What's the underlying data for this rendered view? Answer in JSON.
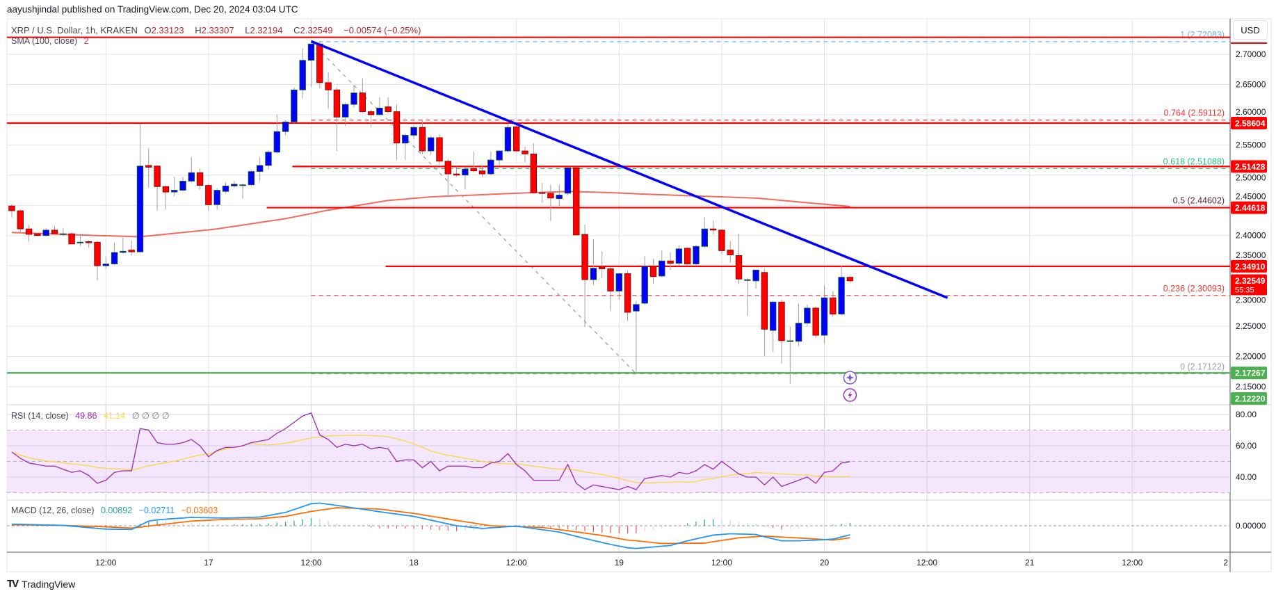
{
  "header": {
    "published": "aayushjindal published on TradingView.com, Dec 20, 2024 03:04 UTC"
  },
  "legend": {
    "symbol": "XRP / U.S. Dollar, 1h, KRAKEN",
    "o_label": "O",
    "o": "2.33123",
    "h_label": "H",
    "h": "2.33307",
    "l_label": "L",
    "l": "2.32194",
    "c_label": "C",
    "c": "2.32549",
    "change": "−0.00574 (−0.25%)",
    "sma_label": "SMA (100, close)",
    "sma_value": "2",
    "rsi_label": "RSI (14, close)",
    "rsi_value": "49.86",
    "rsi_ma_value": "41.14",
    "rsi_extra": "∅  ∅  ∅  ∅",
    "macd_label": "MACD (12, 26, close)",
    "macd_hist": "0.00892",
    "macd_value": "−0.02711",
    "macd_signal": "−0.03603"
  },
  "axis": {
    "currency": "USD",
    "price_ticks": [
      "2.15000",
      "2.20000",
      "2.25000",
      "2.30000",
      "2.35000",
      "2.40000",
      "2.45000",
      "2.50000",
      "2.55000",
      "2.60000",
      "2.65000",
      "2.70000"
    ],
    "rsi_ticks": [
      "40.00",
      "60.00",
      "80.00"
    ],
    "macd_ticks": [
      "0.00000"
    ],
    "time_labels": [
      {
        "bar": 11,
        "label": "12:00"
      },
      {
        "bar": 23,
        "label": "17"
      },
      {
        "bar": 35,
        "label": "12:00"
      },
      {
        "bar": 47,
        "label": "18"
      },
      {
        "bar": 59,
        "label": "12:00"
      },
      {
        "bar": 71,
        "label": "19"
      },
      {
        "bar": 83,
        "label": "12:00"
      },
      {
        "bar": 95,
        "label": "20"
      },
      {
        "bar": 107,
        "label": "12:00"
      },
      {
        "bar": 119,
        "label": "21"
      },
      {
        "bar": 131,
        "label": "12:00"
      },
      {
        "bar": 143,
        "label": "2"
      }
    ]
  },
  "price_tags": [
    {
      "value": 2.58604,
      "label": "2.58604",
      "color": "#ff0000"
    },
    {
      "value": 2.51428,
      "label": "2.51428",
      "color": "#ff0000"
    },
    {
      "value": 2.44618,
      "label": "2.44618",
      "color": "#ff0000"
    },
    {
      "value": 2.3491,
      "label": "2.34910",
      "color": "#ff0000"
    },
    {
      "value": 2.32549,
      "label": "2.32549",
      "countdown": "55:35",
      "color": "#ff0000"
    },
    {
      "value": 2.17267,
      "label": "2.17267",
      "color": "#4caf50"
    },
    {
      "value": 2.1222,
      "label": "2.12220",
      "color": "#4caf50"
    }
  ],
  "colors": {
    "up": "#0000ff",
    "up_border": "#1b5e20",
    "down": "#ff0000",
    "down_border": "#7f0000",
    "wick": "#9e9e9e",
    "sma": "#f44336",
    "trendline": "#0000ff",
    "rsi": "#9c27b0",
    "rsi_ma": "#fdd835",
    "rsi_band": "#f3e6fd",
    "macd": "#2196f3",
    "signal": "#ff6d00",
    "hist_up_strong": "#26a69a",
    "hist_up_weak": "#b2dfdb",
    "hist_dn_strong": "#ff5252",
    "hist_dn_weak": "#ffcdd2",
    "grid": "#e0e3eb"
  },
  "chart_data": {
    "type": "candlestick",
    "title": "XRP / U.S. Dollar, 1h, KRAKEN",
    "interval": "1h",
    "start": "Dec 16 01:00",
    "ylim": [
      2.12,
      2.76
    ],
    "ohlc": [
      [
        2.449,
        2.452,
        2.43,
        2.441
      ],
      [
        2.441,
        2.443,
        2.406,
        2.411
      ],
      [
        2.411,
        2.418,
        2.39,
        2.402
      ],
      [
        2.403,
        2.404,
        2.399,
        2.4
      ],
      [
        2.4,
        2.412,
        2.399,
        2.409
      ],
      [
        2.409,
        2.416,
        2.402,
        2.403
      ],
      [
        2.403,
        2.412,
        2.399,
        2.403
      ],
      [
        2.403,
        2.405,
        2.386,
        2.386
      ],
      [
        2.388,
        2.403,
        2.383,
        2.389
      ],
      [
        2.39,
        2.392,
        2.38,
        2.388
      ],
      [
        2.389,
        2.391,
        2.326,
        2.35
      ],
      [
        2.35,
        2.365,
        2.345,
        2.353
      ],
      [
        2.353,
        2.388,
        2.351,
        2.372
      ],
      [
        2.372,
        2.397,
        2.37,
        2.374
      ],
      [
        2.376,
        2.392,
        2.367,
        2.373
      ],
      [
        2.373,
        2.585,
        2.372,
        2.515
      ],
      [
        2.516,
        2.545,
        2.479,
        2.513
      ],
      [
        2.515,
        2.516,
        2.441,
        2.481
      ],
      [
        2.481,
        2.483,
        2.443,
        2.472
      ],
      [
        2.472,
        2.497,
        2.465,
        2.475
      ],
      [
        2.475,
        2.497,
        2.473,
        2.49
      ],
      [
        2.49,
        2.53,
        2.488,
        2.504
      ],
      [
        2.504,
        2.511,
        2.476,
        2.483
      ],
      [
        2.483,
        2.486,
        2.441,
        2.451
      ],
      [
        2.451,
        2.478,
        2.443,
        2.475
      ],
      [
        2.473,
        2.488,
        2.47,
        2.482
      ],
      [
        2.482,
        2.49,
        2.48,
        2.485
      ],
      [
        2.484,
        2.486,
        2.461,
        2.484
      ],
      [
        2.484,
        2.508,
        2.482,
        2.506
      ],
      [
        2.506,
        2.53,
        2.49,
        2.516
      ],
      [
        2.516,
        2.541,
        2.509,
        2.538
      ],
      [
        2.538,
        2.6,
        2.536,
        2.572
      ],
      [
        2.572,
        2.591,
        2.566,
        2.588
      ],
      [
        2.588,
        2.645,
        2.584,
        2.641
      ],
      [
        2.641,
        2.71,
        2.627,
        2.69
      ],
      [
        2.69,
        2.721,
        2.646,
        2.717
      ],
      [
        2.717,
        2.721,
        2.644,
        2.653
      ],
      [
        2.653,
        2.67,
        2.61,
        2.641
      ],
      [
        2.641,
        2.645,
        2.54,
        2.596
      ],
      [
        2.596,
        2.62,
        2.581,
        2.617
      ],
      [
        2.617,
        2.649,
        2.612,
        2.636
      ],
      [
        2.636,
        2.66,
        2.603,
        2.605
      ],
      [
        2.605,
        2.608,
        2.58,
        2.6
      ],
      [
        2.6,
        2.629,
        2.598,
        2.611
      ],
      [
        2.613,
        2.629,
        2.602,
        2.605
      ],
      [
        2.605,
        2.617,
        2.525,
        2.553
      ],
      [
        2.553,
        2.569,
        2.525,
        2.566
      ],
      [
        2.566,
        2.582,
        2.56,
        2.579
      ],
      [
        2.579,
        2.592,
        2.535,
        2.54
      ],
      [
        2.54,
        2.565,
        2.533,
        2.562
      ],
      [
        2.562,
        2.568,
        2.518,
        2.523
      ],
      [
        2.523,
        2.527,
        2.468,
        2.502
      ],
      [
        2.502,
        2.514,
        2.497,
        2.5
      ],
      [
        2.5,
        2.514,
        2.476,
        2.51
      ],
      [
        2.511,
        2.539,
        2.505,
        2.507
      ],
      [
        2.507,
        2.515,
        2.497,
        2.502
      ],
      [
        2.502,
        2.539,
        2.5,
        2.525
      ],
      [
        2.525,
        2.541,
        2.515,
        2.54
      ],
      [
        2.54,
        2.585,
        2.538,
        2.579
      ],
      [
        2.58,
        2.585,
        2.538,
        2.54
      ],
      [
        2.54,
        2.547,
        2.521,
        2.535
      ],
      [
        2.535,
        2.553,
        2.469,
        2.471
      ],
      [
        2.471,
        2.487,
        2.454,
        2.47
      ],
      [
        2.47,
        2.484,
        2.424,
        2.462
      ],
      [
        2.461,
        2.484,
        2.449,
        2.467
      ],
      [
        2.47,
        2.514,
        2.467,
        2.512
      ],
      [
        2.512,
        2.514,
        2.401,
        2.401
      ],
      [
        2.402,
        2.418,
        2.249,
        2.327
      ],
      [
        2.327,
        2.394,
        2.318,
        2.346
      ],
      [
        2.348,
        2.374,
        2.33,
        2.345
      ],
      [
        2.345,
        2.348,
        2.275,
        2.308
      ],
      [
        2.308,
        2.338,
        2.294,
        2.337
      ],
      [
        2.337,
        2.342,
        2.259,
        2.273
      ],
      [
        2.275,
        2.292,
        2.171,
        2.286
      ],
      [
        2.288,
        2.366,
        2.286,
        2.349
      ],
      [
        2.349,
        2.361,
        2.32,
        2.332
      ],
      [
        2.333,
        2.375,
        2.331,
        2.358
      ],
      [
        2.358,
        2.372,
        2.343,
        2.354
      ],
      [
        2.354,
        2.384,
        2.35,
        2.378
      ],
      [
        2.379,
        2.381,
        2.35,
        2.353
      ],
      [
        2.353,
        2.385,
        2.35,
        2.382
      ],
      [
        2.382,
        2.43,
        2.38,
        2.411
      ],
      [
        2.411,
        2.425,
        2.402,
        2.409
      ],
      [
        2.409,
        2.411,
        2.369,
        2.375
      ],
      [
        2.376,
        2.391,
        2.355,
        2.368
      ],
      [
        2.367,
        2.403,
        2.32,
        2.328
      ],
      [
        2.327,
        2.33,
        2.267,
        2.327
      ],
      [
        2.325,
        2.343,
        2.312,
        2.343
      ],
      [
        2.339,
        2.345,
        2.2,
        2.245
      ],
      [
        2.243,
        2.292,
        2.207,
        2.29
      ],
      [
        2.29,
        2.294,
        2.188,
        2.226
      ],
      [
        2.226,
        2.249,
        2.155,
        2.226
      ],
      [
        2.225,
        2.287,
        2.217,
        2.255
      ],
      [
        2.255,
        2.286,
        2.25,
        2.28
      ],
      [
        2.28,
        2.282,
        2.231,
        2.235
      ],
      [
        2.235,
        2.317,
        2.222,
        2.297
      ],
      [
        2.297,
        2.308,
        2.266,
        2.27
      ],
      [
        2.27,
        2.351,
        2.268,
        2.331
      ],
      [
        2.331,
        2.333,
        2.322,
        2.325
      ]
    ],
    "sma100": [
      [
        0,
        2.405
      ],
      [
        10,
        2.4
      ],
      [
        15,
        2.398
      ],
      [
        22,
        2.408
      ],
      [
        24,
        2.411
      ],
      [
        32,
        2.428
      ],
      [
        37,
        2.442
      ],
      [
        44,
        2.458
      ],
      [
        49,
        2.464
      ],
      [
        59,
        2.47
      ],
      [
        65,
        2.473
      ],
      [
        70,
        2.471
      ],
      [
        75,
        2.468
      ],
      [
        87,
        2.462
      ],
      [
        98,
        2.448
      ]
    ],
    "horizontal_levels": [
      {
        "value": 2.728,
        "from_bar": -1,
        "color": "#ff0000"
      },
      {
        "value": 2.58604,
        "from_bar": -1,
        "color": "#ff0000"
      },
      {
        "value": 2.51428,
        "from_bar": 32.8,
        "color": "#ff0000"
      },
      {
        "value": 2.44618,
        "from_bar": 29.8,
        "color": "#ff0000"
      },
      {
        "value": 2.3491,
        "from_bar": 43.7,
        "color": "#ff0000"
      },
      {
        "value": 2.17267,
        "from_bar": -1,
        "color": "#4caf50"
      }
    ],
    "trendline": [
      [
        35,
        2.7215
      ],
      [
        109.4,
        2.297
      ]
    ],
    "fib": {
      "from": [
        35,
        2.72083
      ],
      "to": [
        73,
        2.17122
      ],
      "levels": [
        {
          "ratio": "1",
          "value": 2.72083,
          "label": "1 (2.72083)",
          "color": "#64b5f6"
        },
        {
          "ratio": "0.764",
          "value": 2.59112,
          "label": "0.764 (2.59112)",
          "color": "#e53935"
        },
        {
          "ratio": "0.618",
          "value": 2.51088,
          "label": "0.618 (2.51088)",
          "color": "#26c281"
        },
        {
          "ratio": "0.5",
          "value": 2.44602,
          "label": "0.5 (2.44602)",
          "color": "#5d2a3a"
        },
        {
          "ratio": "0.236",
          "value": 2.30093,
          "label": "0.236 (2.30093)",
          "color": "#e53935"
        },
        {
          "ratio": "0",
          "value": 2.17122,
          "label": "0 (2.17122)",
          "color": "#9e9e9e"
        }
      ]
    },
    "rsi": {
      "ylim": [
        18,
        98
      ],
      "band": [
        30,
        70
      ],
      "values": [
        56,
        52,
        49,
        48,
        47,
        47,
        45,
        43,
        44,
        41,
        36,
        38,
        43,
        44,
        44,
        71,
        70,
        62,
        61,
        61,
        62,
        64,
        60,
        53,
        57,
        59,
        59,
        60,
        62,
        63,
        64,
        68,
        71,
        75,
        79,
        81,
        67,
        64,
        59,
        61,
        60,
        61,
        58,
        59,
        58,
        50,
        51,
        51,
        46,
        50,
        44,
        47,
        47,
        47,
        46,
        46,
        49,
        50,
        55,
        48,
        44,
        38,
        38,
        38,
        38,
        48,
        36,
        32,
        35,
        34,
        33,
        32,
        34,
        32,
        39,
        40,
        41,
        40,
        43,
        42,
        44,
        48,
        45,
        50,
        46,
        42,
        40,
        40,
        35,
        40,
        34,
        36,
        38,
        40,
        36,
        43,
        44,
        49,
        49.86
      ],
      "ma_length": 14
    },
    "macd": {
      "macd": [
        [
          0,
          0.005
        ],
        [
          6,
          0.001
        ],
        [
          11,
          -0.01
        ],
        [
          14,
          -0.011
        ],
        [
          16,
          0.014
        ],
        [
          17,
          0.018
        ],
        [
          21,
          0.025
        ],
        [
          25,
          0.023
        ],
        [
          29,
          0.026
        ],
        [
          32,
          0.04
        ],
        [
          35,
          0.066
        ],
        [
          36,
          0.068
        ],
        [
          38,
          0.061
        ],
        [
          43,
          0.042
        ],
        [
          47,
          0.028
        ],
        [
          52,
          0.0
        ],
        [
          55,
          -0.008
        ],
        [
          59,
          -0.001
        ],
        [
          64,
          -0.019
        ],
        [
          67,
          -0.038
        ],
        [
          70,
          -0.056
        ],
        [
          72,
          -0.066
        ],
        [
          73,
          -0.068
        ],
        [
          77,
          -0.059
        ],
        [
          79,
          -0.045
        ],
        [
          82,
          -0.028
        ],
        [
          84,
          -0.024
        ],
        [
          87,
          -0.026
        ],
        [
          88,
          -0.033
        ],
        [
          90,
          -0.045
        ],
        [
          92,
          -0.045
        ],
        [
          94,
          -0.043
        ],
        [
          96,
          -0.04
        ],
        [
          98,
          -0.02711
        ]
      ],
      "signal": [
        [
          0,
          0.003
        ],
        [
          6,
          0.001
        ],
        [
          11,
          -0.003
        ],
        [
          14,
          -0.007
        ],
        [
          17,
          0.002
        ],
        [
          21,
          0.014
        ],
        [
          25,
          0.019
        ],
        [
          29,
          0.021
        ],
        [
          32,
          0.028
        ],
        [
          35,
          0.043
        ],
        [
          38,
          0.054
        ],
        [
          43,
          0.05
        ],
        [
          47,
          0.037
        ],
        [
          52,
          0.016
        ],
        [
          56,
          0.0
        ],
        [
          62,
          -0.005
        ],
        [
          65,
          -0.015
        ],
        [
          69,
          -0.029
        ],
        [
          72,
          -0.043
        ],
        [
          73,
          -0.045
        ],
        [
          76,
          -0.053
        ],
        [
          81,
          -0.052
        ],
        [
          85,
          -0.036
        ],
        [
          88,
          -0.031
        ],
        [
          93,
          -0.038
        ],
        [
          96,
          -0.043
        ],
        [
          98,
          -0.03603
        ]
      ],
      "ylim": [
        -0.079,
        0.077
      ]
    }
  }
}
